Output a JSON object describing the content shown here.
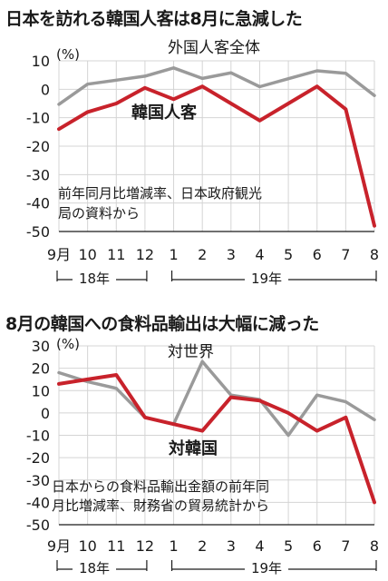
{
  "colors": {
    "red": "#c8222b",
    "gray": "#9a9a9a",
    "grid": "#d4d4d4",
    "text": "#1a1a1a"
  },
  "chart_data": [
    {
      "type": "line",
      "title": "日本を訪れる韓国人客は8月に急減した",
      "unit_label": "(%)",
      "categories": [
        "9月",
        "10",
        "11",
        "12",
        "1",
        "2",
        "3",
        "4",
        "5",
        "6",
        "7",
        "8"
      ],
      "year_labels": [
        "18年",
        "19年"
      ],
      "ylim": [
        -50,
        10
      ],
      "yticks": [
        "10",
        "0",
        "-10",
        "-20",
        "-30",
        "-40",
        "-50"
      ],
      "grid": true,
      "note": [
        "前年同月比増減率、日本政府観光",
        "局の資料から"
      ],
      "series": [
        {
          "name": "外国人客全体",
          "color": "#9a9a9a",
          "values": [
            -5.3,
            1.8,
            3.2,
            4.6,
            7.5,
            3.8,
            5.8,
            0.9,
            3.7,
            6.5,
            5.6,
            -2.2
          ]
        },
        {
          "name": "韓国人客",
          "color": "#c8222b",
          "values": [
            -14.0,
            -8.0,
            -5.0,
            0.5,
            -3.5,
            1.0,
            -5.0,
            -11.0,
            -5.0,
            1.0,
            -7.0,
            -48.0
          ]
        }
      ]
    },
    {
      "type": "line",
      "title": "8月の韓国への食料品輸出は大幅に減った",
      "unit_label": "(%)",
      "categories": [
        "9月",
        "10",
        "11",
        "12",
        "1",
        "2",
        "3",
        "4",
        "5",
        "6",
        "7",
        "8"
      ],
      "year_labels": [
        "18年",
        "19年"
      ],
      "ylim": [
        -50,
        30
      ],
      "yticks": [
        "30",
        "20",
        "10",
        "0",
        "-10",
        "-20",
        "-30",
        "-40",
        "-50"
      ],
      "grid": true,
      "note": [
        "日本からの食料品輸出金額の前年同",
        "月比増減率、財務省の貿易統計から"
      ],
      "series": [
        {
          "name": "対世界",
          "color": "#9a9a9a",
          "values": [
            18.0,
            14.0,
            11.0,
            -2.0,
            -5.0,
            23.0,
            8.0,
            6.0,
            -10.0,
            8.0,
            5.0,
            -3.0
          ]
        },
        {
          "name": "対韓国",
          "color": "#c8222b",
          "values": [
            13.0,
            15.0,
            17.0,
            -2.0,
            -5.0,
            -8.0,
            7.0,
            5.5,
            0.0,
            -8.0,
            -2.0,
            -40.0
          ]
        }
      ]
    }
  ]
}
